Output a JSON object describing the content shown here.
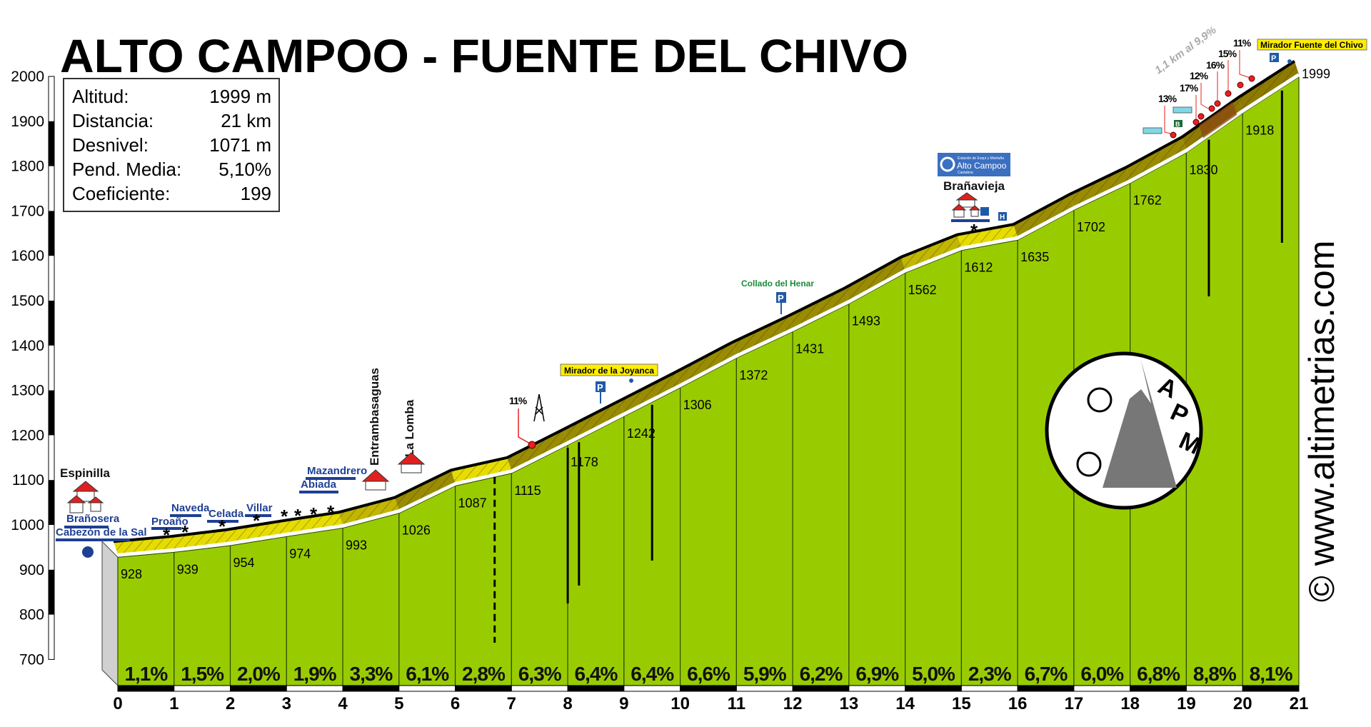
{
  "title": "ALTO CAMPOO - FUENTE DEL CHIVO",
  "info": [
    {
      "label": "Altitud:",
      "value": "1999 m"
    },
    {
      "label": "Distancia:",
      "value": "21 km"
    },
    {
      "label": "Desnivel:",
      "value": "1071 m"
    },
    {
      "label": "Pend. Media:",
      "value": "5,10%"
    },
    {
      "label": "Coeficiente:",
      "value": "199"
    }
  ],
  "copyright": "© www.altimetrias.com",
  "logo_letters": "APM",
  "colors": {
    "terrain": "#99cc00",
    "road_low": "#e6dc00",
    "road_mid": "#c2b600",
    "road_high": "#9a8c00",
    "road_steep": "#8a4a10",
    "marker": "#e82020",
    "sign_blue": "#1f5aa6"
  },
  "chart_data": {
    "type": "area",
    "title": "ALTO CAMPOO - FUENTE DEL CHIVO",
    "xlabel": "",
    "ylabel": "",
    "x": [
      0,
      1,
      2,
      3,
      4,
      5,
      6,
      7,
      8,
      9,
      10,
      11,
      12,
      13,
      14,
      15,
      16,
      17,
      18,
      19,
      20,
      21
    ],
    "elevations": [
      928,
      939,
      954,
      974,
      993,
      1026,
      1087,
      1115,
      1178,
      1242,
      1306,
      1372,
      1431,
      1493,
      1562,
      1612,
      1635,
      1702,
      1762,
      1830,
      1918,
      1999
    ],
    "elevation_labels": [
      "928",
      "939",
      "954",
      "974",
      "993",
      "1026",
      "1087",
      "1115",
      "1178",
      "1242",
      "1306",
      "1372",
      "1431",
      "1493",
      "1562",
      "1612",
      "1635",
      "1702",
      "1762",
      "1830",
      "1918",
      "1999"
    ],
    "gradients": [
      "1,1%",
      "1,5%",
      "2,0%",
      "1,9%",
      "3,3%",
      "6,1%",
      "2,8%",
      "6,3%",
      "6,4%",
      "6,4%",
      "6,6%",
      "5,9%",
      "6,2%",
      "6,9%",
      "5,0%",
      "2,3%",
      "6,7%",
      "6,0%",
      "6,8%",
      "8,8%",
      "8,1%"
    ],
    "gradient_values": [
      1.1,
      1.5,
      2.0,
      1.9,
      3.3,
      6.1,
      2.8,
      6.3,
      6.4,
      6.4,
      6.6,
      5.9,
      6.2,
      6.9,
      5.0,
      2.3,
      6.7,
      6.0,
      6.8,
      8.8,
      8.1
    ],
    "xlim": [
      0,
      21
    ],
    "ylim": [
      700,
      2000
    ],
    "x_ticks": [
      "0",
      "1",
      "2",
      "3",
      "4",
      "5",
      "6",
      "7",
      "8",
      "9",
      "10",
      "11",
      "12",
      "13",
      "14",
      "15",
      "16",
      "17",
      "18",
      "19",
      "20",
      "21"
    ],
    "y_ticks": [
      "700",
      "800",
      "900",
      "1000",
      "1100",
      "1200",
      "1300",
      "1400",
      "1500",
      "1600",
      "1700",
      "1800",
      "1900",
      "2000"
    ],
    "grid": false
  },
  "annotations": {
    "espinilla": "Espinilla",
    "branosera": "Brañosera",
    "cabezon": "Cabezón de la Sal",
    "proano": "Proaño",
    "naveda": "Naveda",
    "celada": "Celada",
    "villar": "Villar",
    "abiada": "Abiada",
    "mazandrero": "Mazandrero",
    "entrambasaguas": "Entrambasaguas",
    "la_lomba": "La Lomba",
    "pct_11_low": "11%",
    "mirador_joyanca": "Mirador de la Joyanca",
    "collado_henar": "Collado del Henar",
    "alto_campoo_logo_small": "Estación de Esquí y Montaña",
    "alto_campoo_logo": "Alto Campoo",
    "alto_campoo_logo_region": "Cantabria",
    "branavieja": "Brañavieja",
    "steep_note": "1,1 km al 9,9%",
    "pct_13": "13%",
    "pct_17": "17%",
    "pct_12": "12%",
    "pct_16": "16%",
    "pct_15": "15%",
    "pct_11_top": "11%",
    "mirador_chivo": "Mirador Fuente del Chivo",
    "parking": "P",
    "hotel": "H",
    "bar": "B"
  }
}
